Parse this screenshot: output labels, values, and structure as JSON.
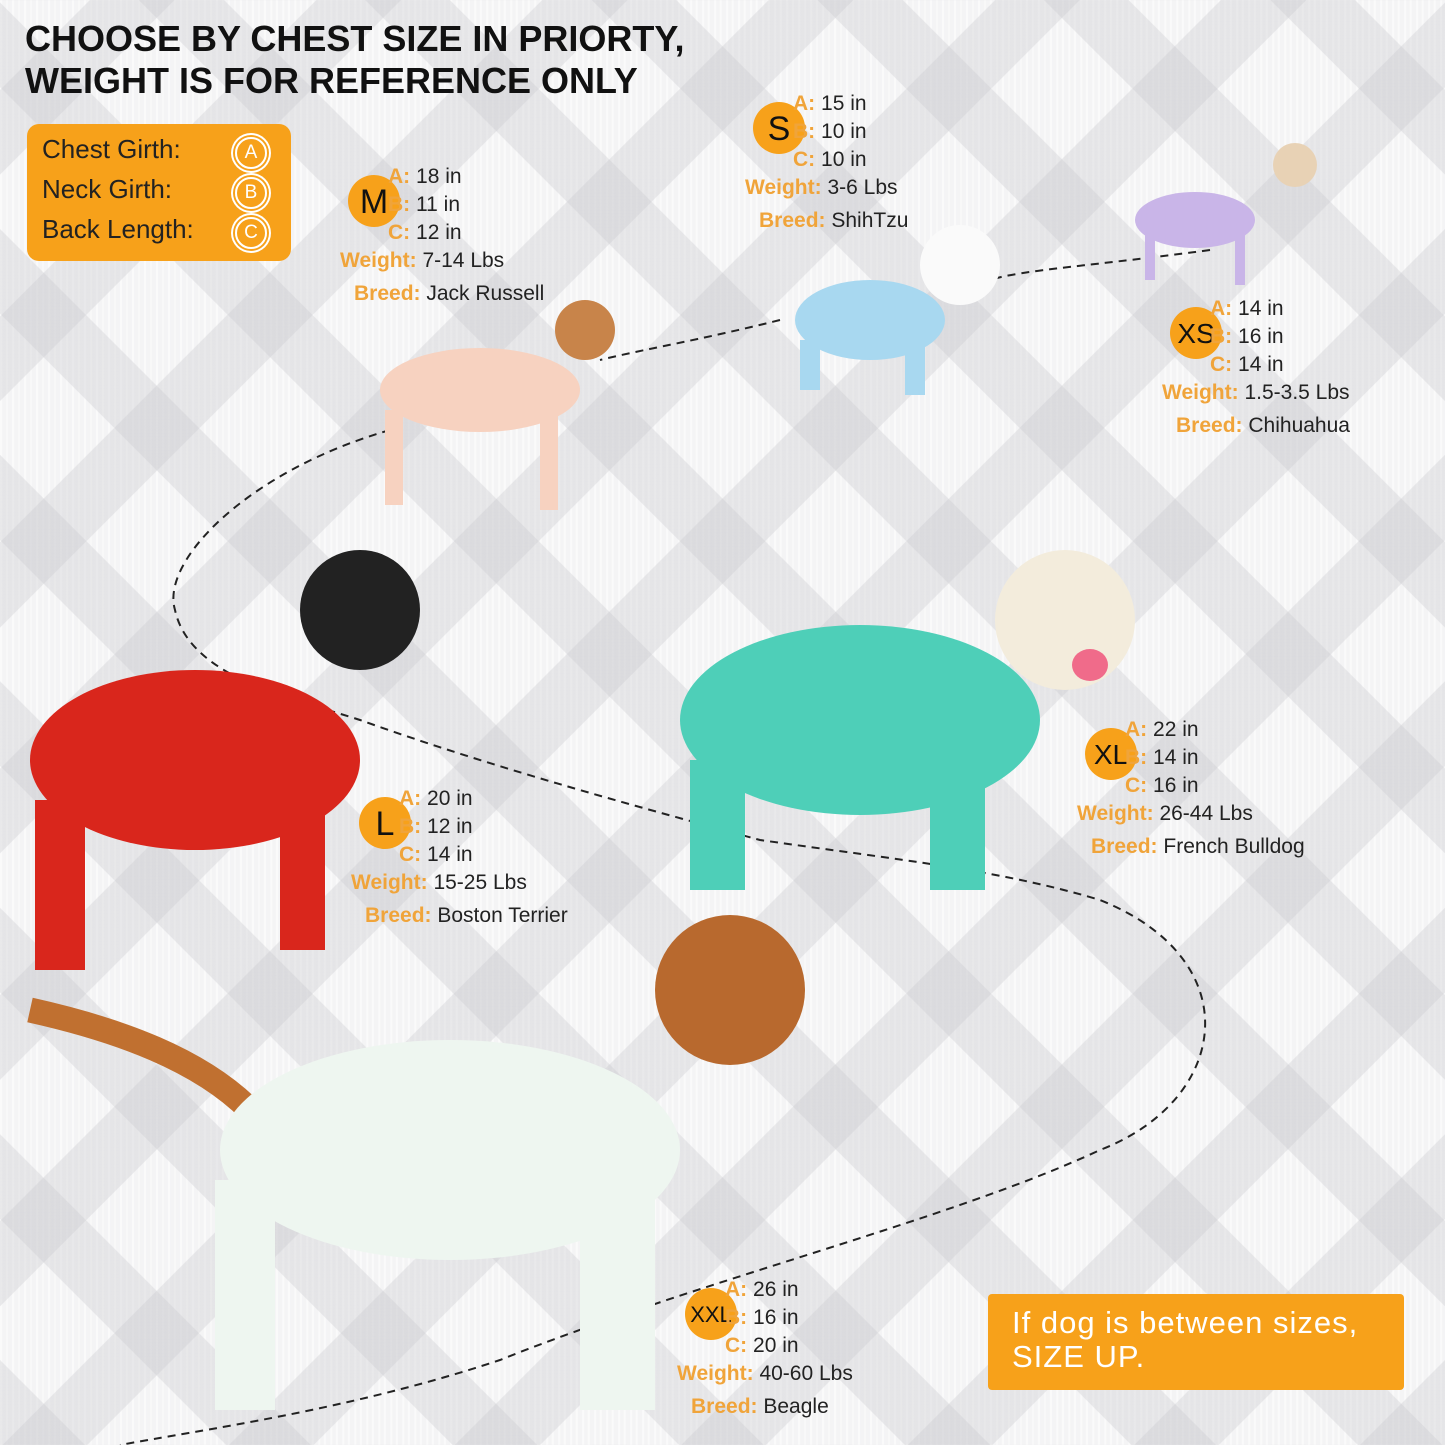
{
  "headline": [
    "CHOOSE BY CHEST SIZE IN PRIORTY,",
    "WEIGHT IS FOR REFERENCE ONLY"
  ],
  "legend": [
    {
      "label": "Chest Girth:",
      "letter": "A"
    },
    {
      "label": "Neck Girth:",
      "letter": "B"
    },
    {
      "label": "Back Length:",
      "letter": "C"
    }
  ],
  "labels": {
    "a": "A:",
    "b": "B:",
    "c": "C:",
    "weight": "Weight:",
    "breed": "Breed:"
  },
  "sizes": [
    {
      "size": "S",
      "a": "15 in",
      "b": "10 in",
      "c": "10 in",
      "weight": "3-6 Lbs",
      "breed": "ShihTzu",
      "pajama_color": "#a8d8f0"
    },
    {
      "size": "M",
      "a": "18 in",
      "b": "11 in",
      "c": "12 in",
      "weight": "7-14 Lbs",
      "breed": "Jack Russell",
      "pajama_color": "#f7d2c0"
    },
    {
      "size": "XS",
      "a": "14 in",
      "b": "16 in",
      "c": "14 in",
      "weight": "1.5-3.5 Lbs",
      "breed": "Chihuahua",
      "pajama_color": "#c9b5e8"
    },
    {
      "size": "XL",
      "a": "22 in",
      "b": "14 in",
      "c": "16 in",
      "weight": "26-44 Lbs",
      "breed": "French Bulldog",
      "pajama_color": "#4ecfb8"
    },
    {
      "size": "L",
      "a": "20 in",
      "b": "12 in",
      "c": "14 in",
      "weight": "15-25 Lbs",
      "breed": "Boston Terrier",
      "pajama_color": "#d9261c"
    },
    {
      "size": "XXL",
      "a": "26 in",
      "b": "16 in",
      "c": "20 in",
      "weight": "40-60 Lbs",
      "breed": "Beagle",
      "pajama_color": "#eef6f0"
    }
  ],
  "note": [
    "If dog is between sizes,",
    "SIZE UP."
  ],
  "colors": {
    "accent": "#f7a11a",
    "label": "#f0a43a",
    "text": "#222222"
  }
}
